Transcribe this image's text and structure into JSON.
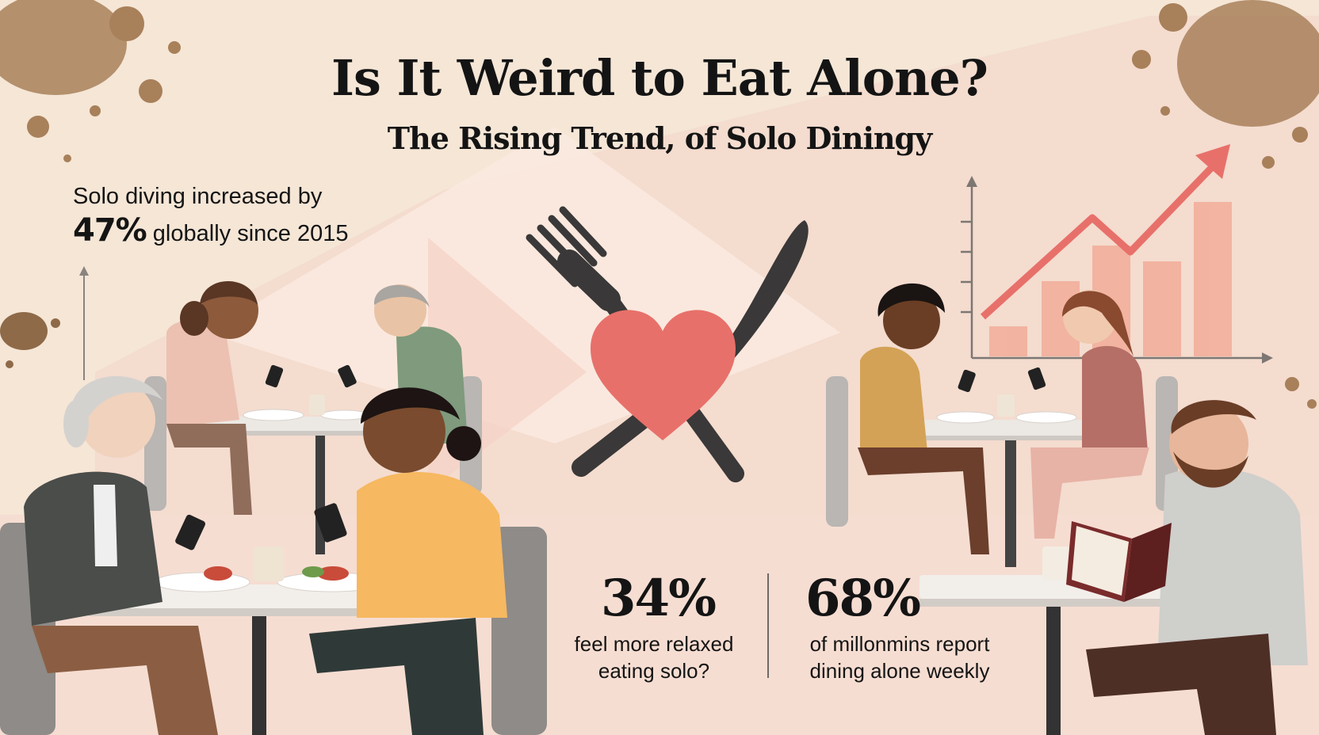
{
  "title": "Is It Weird to Eat Alone?",
  "subtitle": "The Rising Trend, of Solo Diningy",
  "headline_fact": {
    "line1": "Solo diving increased by",
    "percent": "47%",
    "line2_rest": " globally since 2015"
  },
  "stats": [
    {
      "value": "34%",
      "label_line1": "feel more relaxed",
      "label_line2": "eating solo?"
    },
    {
      "value": "68%",
      "label_line1": "of millonmins report",
      "label_line2": "dining alone weekly"
    }
  ],
  "colors": {
    "background": "#f5e6d6",
    "accent": "#e8706a",
    "text": "#141414",
    "stain": "#a8805a"
  },
  "icons": [
    "fork-icon",
    "knife-icon",
    "heart-icon",
    "trend-arrow-icon",
    "phone-icon",
    "book-icon"
  ]
}
